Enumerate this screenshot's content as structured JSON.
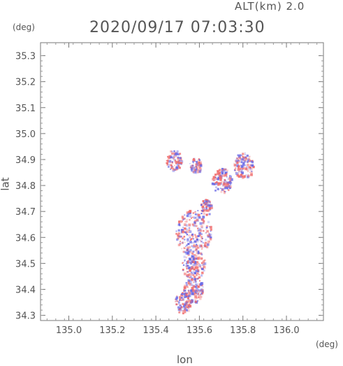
{
  "header": {
    "altitude_label": "ALT(km) 2.0",
    "timestamp": "2020/09/17 07:03:30"
  },
  "chart_data": {
    "type": "scatter",
    "xlabel": "lon",
    "ylabel": "lat",
    "x_unit": "(deg)",
    "y_unit": "(deg)",
    "xlim": [
      134.87,
      136.17
    ],
    "ylim": [
      34.28,
      35.35
    ],
    "x_ticks": [
      "135.0",
      "135.2",
      "135.4",
      "135.6",
      "135.8",
      "136.0"
    ],
    "y_ticks": [
      "34.3",
      "34.4",
      "34.5",
      "34.6",
      "34.7",
      "34.8",
      "34.9",
      "35.0",
      "35.1",
      "35.2",
      "35.3"
    ],
    "grid": false,
    "colors": {
      "positive": "#f06a6a",
      "negative": "#6a6ae6"
    },
    "clusters": [
      {
        "lon": 135.57,
        "lat": 34.62,
        "radius": 0.09
      },
      {
        "lon": 135.57,
        "lat": 34.5,
        "radius": 0.06
      },
      {
        "lon": 135.57,
        "lat": 34.4,
        "radius": 0.05
      },
      {
        "lon": 135.52,
        "lat": 34.35,
        "radius": 0.04
      },
      {
        "lon": 135.7,
        "lat": 34.82,
        "radius": 0.05
      },
      {
        "lon": 135.8,
        "lat": 34.88,
        "radius": 0.05
      },
      {
        "lon": 135.48,
        "lat": 34.9,
        "radius": 0.04
      },
      {
        "lon": 135.58,
        "lat": 34.88,
        "radius": 0.03
      },
      {
        "lon": 135.63,
        "lat": 34.72,
        "radius": 0.03
      }
    ]
  }
}
